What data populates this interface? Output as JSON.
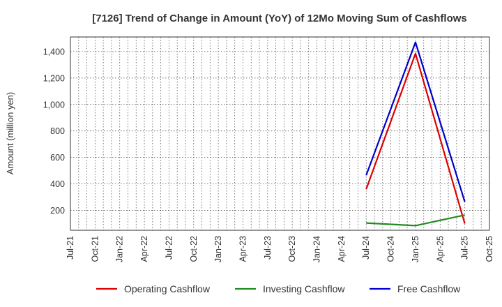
{
  "chart_data": {
    "type": "line",
    "title": "[7126]  Trend of Change in Amount (YoY) of 12Mo Moving Sum of Cashflows",
    "xlabel": "",
    "ylabel": "Amount (million yen)",
    "x_ticks": [
      "Jul-21",
      "Oct-21",
      "Jan-22",
      "Apr-22",
      "Jul-22",
      "Oct-22",
      "Jan-23",
      "Apr-23",
      "Jul-23",
      "Oct-23",
      "Jan-24",
      "Apr-24",
      "Jul-24",
      "Oct-24",
      "Jan-25",
      "Apr-25",
      "Jul-25",
      "Oct-25"
    ],
    "y_ticks": [
      200,
      400,
      600,
      800,
      1000,
      1200,
      1400
    ],
    "y_tick_labels": [
      "200",
      "400",
      "600",
      "800",
      "1,000",
      "1,200",
      "1,400"
    ],
    "ylim": [
      50,
      1510
    ],
    "grid": true,
    "legend_position": "bottom",
    "series": [
      {
        "name": "Operating Cashflow",
        "color": "#dd0000",
        "points": [
          [
            "Jul-24",
            360
          ],
          [
            "Jan-25",
            1385
          ],
          [
            "Jul-25",
            100
          ]
        ]
      },
      {
        "name": "Investing Cashflow",
        "color": "#228b22",
        "points": [
          [
            "Jul-24",
            105
          ],
          [
            "Jan-25",
            85
          ],
          [
            "Jul-25",
            165
          ]
        ]
      },
      {
        "name": "Free Cashflow",
        "color": "#0000cc",
        "points": [
          [
            "Jul-24",
            465
          ],
          [
            "Jan-25",
            1470
          ],
          [
            "Jul-25",
            265
          ]
        ]
      }
    ]
  }
}
